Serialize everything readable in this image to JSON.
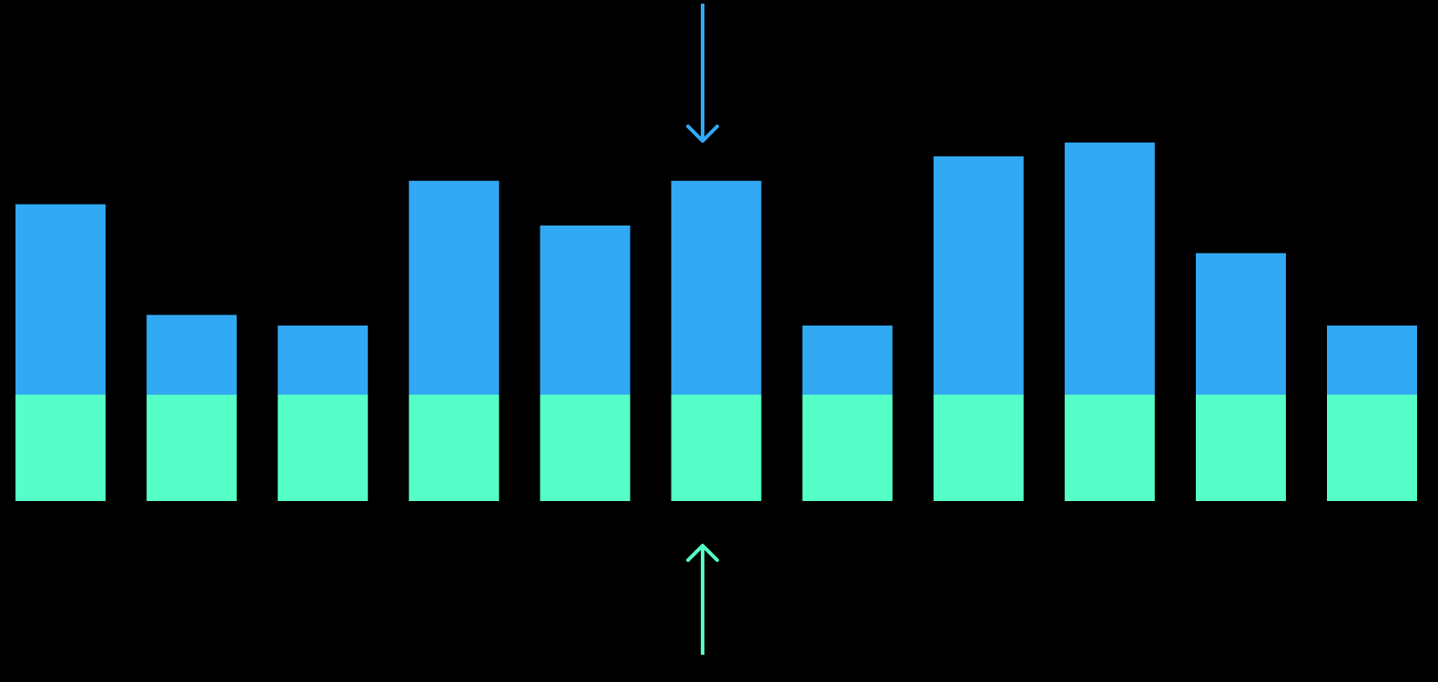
{
  "colors": {
    "background": "#000000",
    "upper_series": "#31A9F3",
    "lower_series": "#57FFC8"
  },
  "annotations": {
    "top_arrow": {
      "direction": "down",
      "color": "#31A9F3",
      "points_to_bar_index": 5,
      "icon": "arrow-down-icon"
    },
    "bottom_arrow": {
      "direction": "up",
      "color": "#57FFC8",
      "points_to_bar_index": 5,
      "icon": "arrow-up-icon"
    }
  },
  "chart_data": {
    "type": "bar",
    "stacked": true,
    "categories": [
      "",
      "",
      "",
      "",
      "",
      "",
      "",
      "",
      "",
      "",
      ""
    ],
    "series": [
      {
        "color": "#57FFC8",
        "values": [
          1,
          1,
          1,
          1,
          1,
          1,
          1,
          1,
          1,
          1,
          1
        ]
      },
      {
        "color": "#31A9F3",
        "values": [
          1.79,
          0.75,
          0.65,
          2.01,
          1.59,
          2.01,
          0.65,
          2.24,
          2.37,
          1.33,
          0.65
        ]
      }
    ],
    "ylim": [
      0,
      3.5
    ],
    "grid": false,
    "legend": "none",
    "axes_visible": false
  }
}
